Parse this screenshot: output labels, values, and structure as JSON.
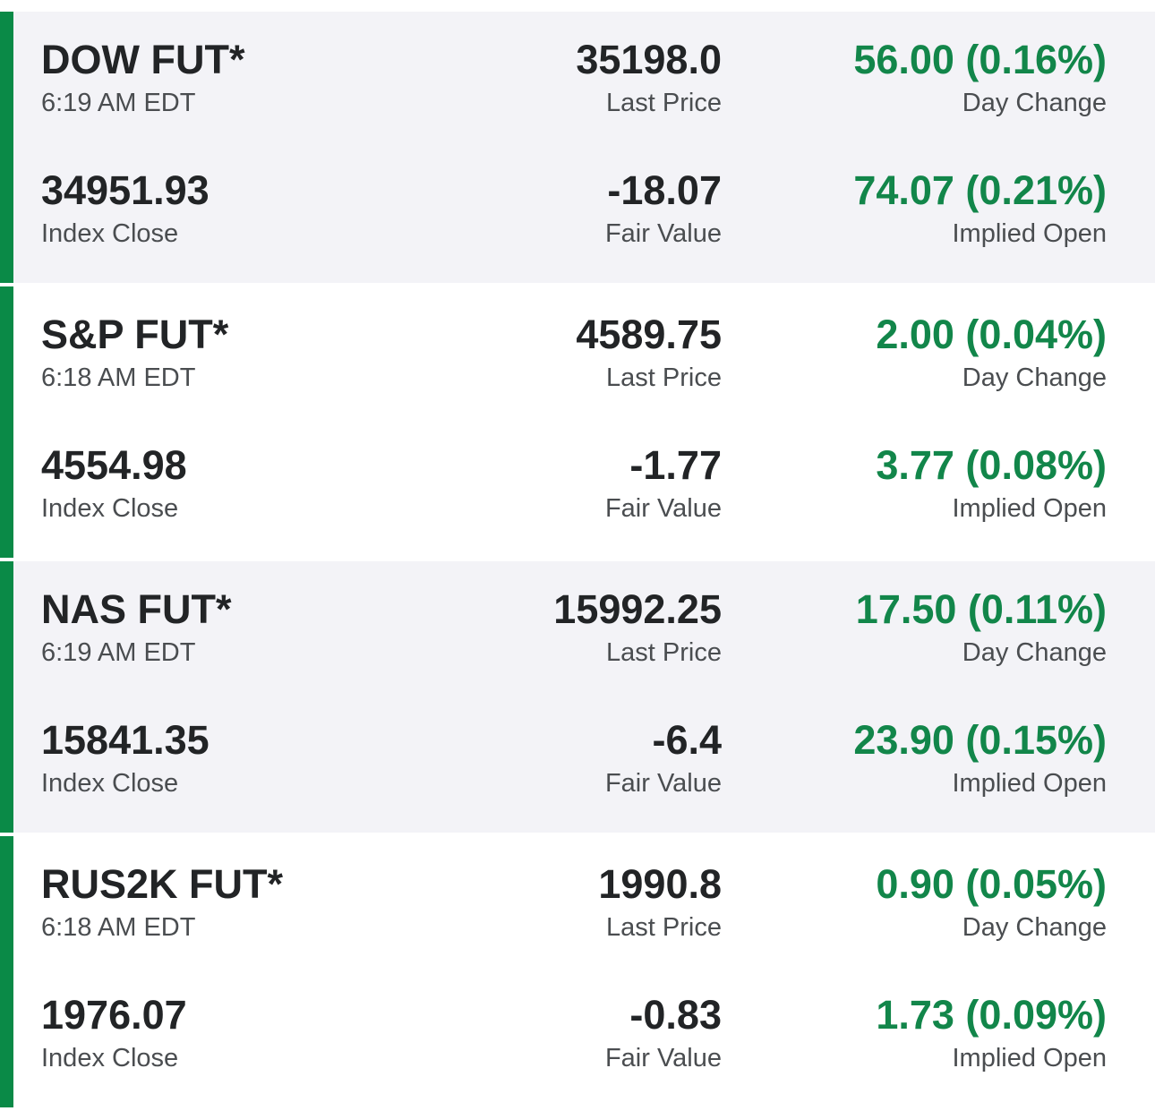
{
  "theme": {
    "accent_color": "#0a8a47",
    "positive_color": "#12864a",
    "text_color": "#222426",
    "muted_color": "#4a4d50",
    "shaded_bg": "#f3f3f7"
  },
  "futures": [
    {
      "name": "DOW FUT*",
      "time": "6:19 AM EDT",
      "last_price": "35198.0",
      "last_price_label": "Last Price",
      "day_change": "56.00 (0.16%)",
      "day_change_label": "Day Change",
      "index_close": "34951.93",
      "index_close_label": "Index Close",
      "fair_value": "-18.07",
      "fair_value_label": "Fair Value",
      "implied_open": "74.07 (0.21%)",
      "implied_open_label": "Implied Open"
    },
    {
      "name": "S&P FUT*",
      "time": "6:18 AM EDT",
      "last_price": "4589.75",
      "last_price_label": "Last Price",
      "day_change": "2.00 (0.04%)",
      "day_change_label": "Day Change",
      "index_close": "4554.98",
      "index_close_label": "Index Close",
      "fair_value": "-1.77",
      "fair_value_label": "Fair Value",
      "implied_open": "3.77 (0.08%)",
      "implied_open_label": "Implied Open"
    },
    {
      "name": "NAS FUT*",
      "time": "6:19 AM EDT",
      "last_price": "15992.25",
      "last_price_label": "Last Price",
      "day_change": "17.50 (0.11%)",
      "day_change_label": "Day Change",
      "index_close": "15841.35",
      "index_close_label": "Index Close",
      "fair_value": "-6.4",
      "fair_value_label": "Fair Value",
      "implied_open": "23.90 (0.15%)",
      "implied_open_label": "Implied Open"
    },
    {
      "name": "RUS2K FUT*",
      "time": "6:18 AM EDT",
      "last_price": "1990.8",
      "last_price_label": "Last Price",
      "day_change": "0.90 (0.05%)",
      "day_change_label": "Day Change",
      "index_close": "1976.07",
      "index_close_label": "Index Close",
      "fair_value": "-0.83",
      "fair_value_label": "Fair Value",
      "implied_open": "1.73 (0.09%)",
      "implied_open_label": "Implied Open"
    }
  ]
}
